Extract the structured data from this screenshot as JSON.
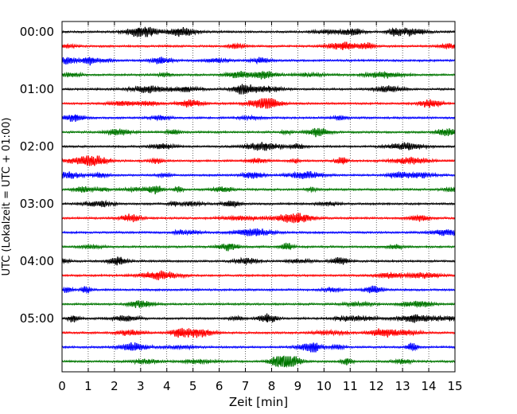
{
  "chart_data": {
    "type": "line",
    "title": "",
    "xlabel": "Zeit  [min]",
    "ylabel": "UTC (Lokalzeit = UTC + 01:00)",
    "xlim": [
      0,
      15
    ],
    "x_ticks": [
      "0",
      "1",
      "2",
      "3",
      "4",
      "5",
      "6",
      "7",
      "8",
      "9",
      "10",
      "11",
      "12",
      "13",
      "14",
      "15"
    ],
    "y_ticks": [
      {
        "label": "00:00",
        "row": 0
      },
      {
        "label": "01:00",
        "row": 4
      },
      {
        "label": "02:00",
        "row": 8
      },
      {
        "label": "03:00",
        "row": 12
      },
      {
        "label": "04:00",
        "row": 16
      },
      {
        "label": "05:00",
        "row": 20
      }
    ],
    "rows": 24,
    "row_minutes": 15,
    "vertical_grid": true,
    "grid_style": "dotted",
    "trace_colors": [
      "#000000",
      "#ff0000",
      "#0000ff",
      "#007700"
    ]
  }
}
